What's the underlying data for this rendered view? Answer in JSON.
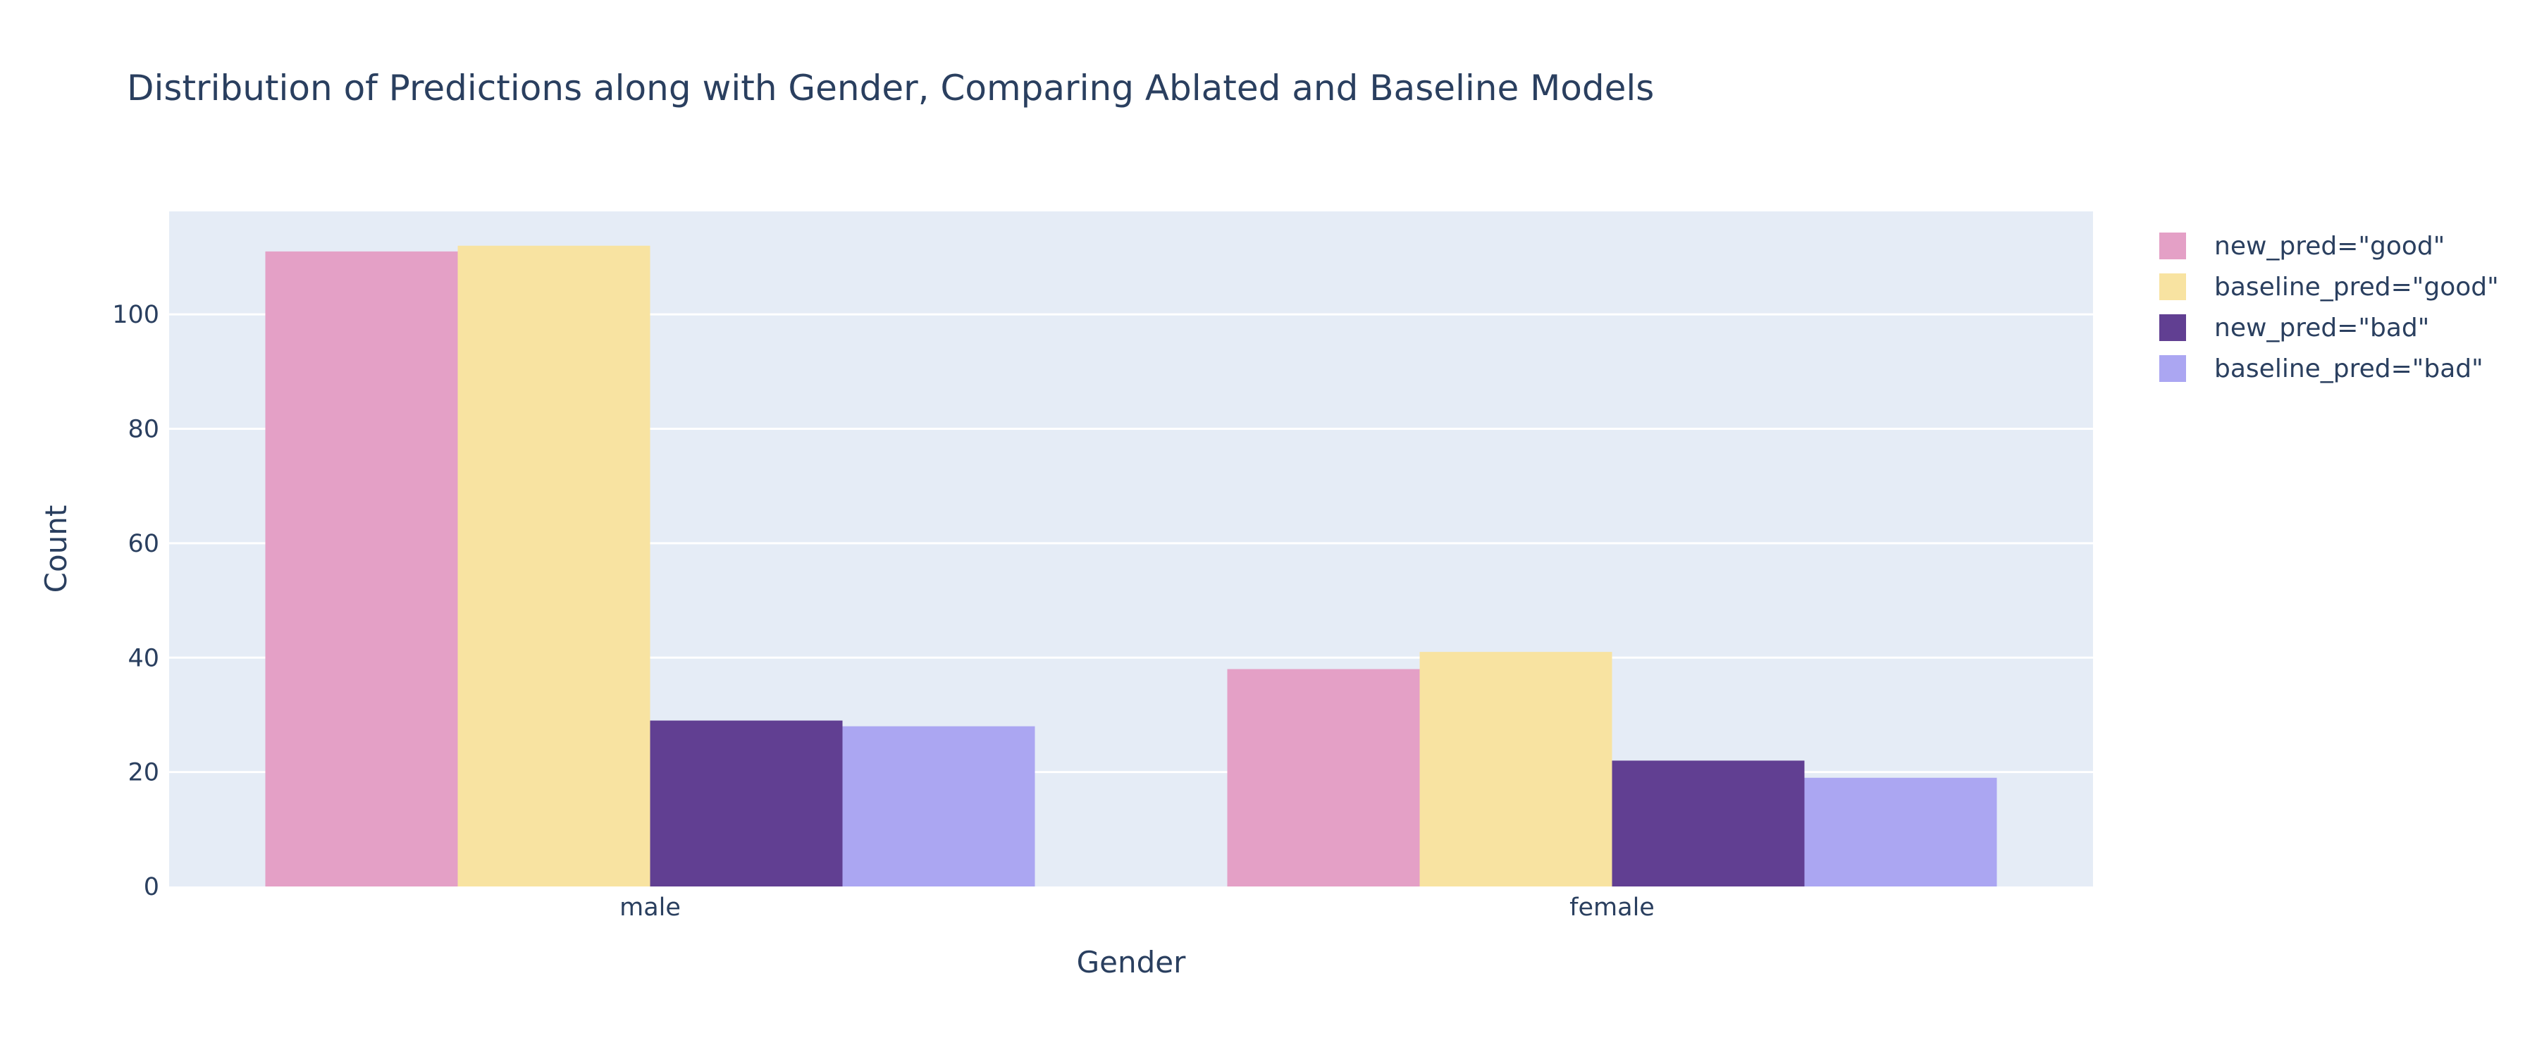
{
  "chart_data": {
    "type": "bar",
    "title": "Distribution of Predictions along with Gender, Comparing Ablated and Baseline Models",
    "xlabel": "Gender",
    "ylabel": "Count",
    "categories": [
      "male",
      "female"
    ],
    "ylim": [
      0,
      118
    ],
    "yticks": [
      0,
      20,
      40,
      60,
      80,
      100
    ],
    "grid": true,
    "legend_position": "top-right",
    "series": [
      {
        "name": "new_pred=\"good\"",
        "values": [
          111,
          38
        ],
        "color": "#e4a0c6"
      },
      {
        "name": "baseline_pred=\"good\"",
        "values": [
          112,
          41
        ],
        "color": "#f8e3a1"
      },
      {
        "name": "new_pred=\"bad\"",
        "values": [
          29,
          22
        ],
        "color": "#613f92"
      },
      {
        "name": "baseline_pred=\"bad\"",
        "values": [
          28,
          19
        ],
        "color": "#aba6f2"
      }
    ]
  }
}
